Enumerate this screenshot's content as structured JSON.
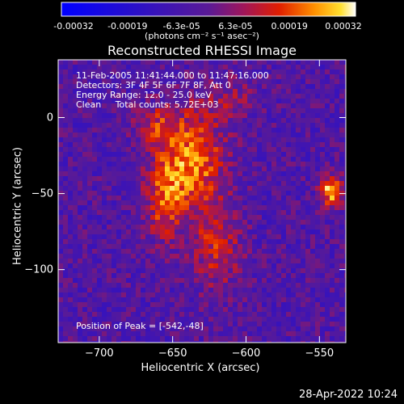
{
  "chart_data": {
    "type": "heatmap",
    "title": "Reconstructed RHESSI Image",
    "xlabel": "Heliocentric X (arcsec)",
    "ylabel": "Heliocentric Y (arcsec)",
    "xlim": [
      -728,
      -532
    ],
    "ylim": [
      -148,
      38
    ],
    "xticks": [
      -700,
      -650,
      -600,
      -550
    ],
    "yticks": [
      0,
      -50,
      -100
    ],
    "colorbar": {
      "ticks": [
        "-0.00032",
        "-0.00019",
        "-6.3e-05",
        "6.3e-05",
        "0.00019",
        "0.00032"
      ],
      "units": "(photons cm⁻² s⁻¹ asec⁻²)",
      "range": [
        -0.00032,
        0.00032
      ]
    },
    "annotations": {
      "time": "11-Feb-2005 11:41:44.000 to 11:47:16.000",
      "detectors": "Detectors: 3F 4F 5F 6F 7F 8F, Att 0",
      "energy": "Energy Range: 12.0 - 25.0 keV",
      "clean": "Clean     Total counts: 5.72E+03",
      "peak": "Position of Peak = [-542,-48]"
    },
    "sources": [
      {
        "x": -635,
        "y": -28,
        "sx": 15,
        "sy": 22,
        "amp": 0.00024
      },
      {
        "x": -655,
        "y": -52,
        "sx": 10,
        "sy": 20,
        "amp": 0.0002
      },
      {
        "x": -620,
        "y": -85,
        "sx": 12,
        "sy": 20,
        "amp": 0.00016
      },
      {
        "x": -660,
        "y": -5,
        "sx": 12,
        "sy": 10,
        "amp": 0.00014
      },
      {
        "x": -542,
        "y": -48,
        "sx": 5,
        "sy": 7,
        "amp": 0.00032
      },
      {
        "x": -612,
        "y": 12,
        "sx": 14,
        "sy": 10,
        "amp": 0.0001
      }
    ]
  },
  "footer": {
    "timestamp": "28-Apr-2022 10:24"
  }
}
